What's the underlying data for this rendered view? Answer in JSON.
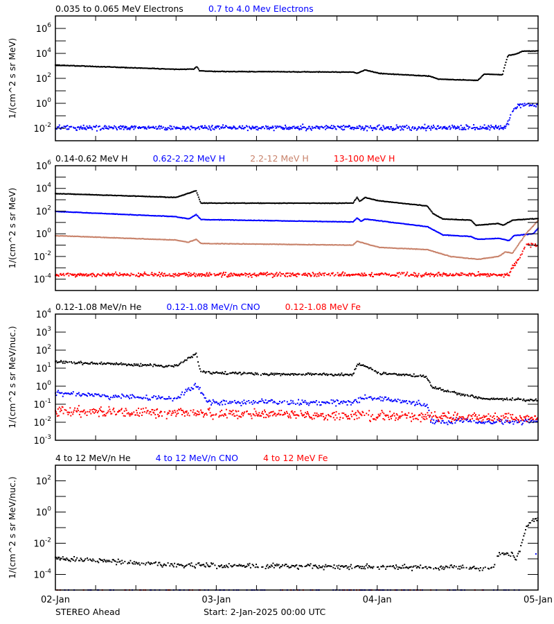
{
  "chart_data": [
    {
      "type": "scatter",
      "yscale": "log",
      "ylim": [
        0.001,
        10000000.0
      ],
      "yticks_labeled_exponents": [
        6,
        4,
        2,
        0,
        -2
      ],
      "ylabel": "1/(cm^2 s sr MeV)",
      "xlim": [
        "2025-01-02T00:00",
        "2025-01-05T00:00"
      ],
      "series": [
        {
          "name": "0.035 to 0.065 MeV Electrons",
          "color": "#000000",
          "points": [
            [
              "2025-01-02T00:00",
              1150
            ],
            [
              "2025-01-02T18:00",
              525
            ],
            [
              "2025-01-02T20:42",
              560
            ],
            [
              "2025-01-02T21:06",
              890
            ],
            [
              "2025-01-02T21:30",
              400
            ],
            [
              "2025-01-03T00:00",
              355
            ],
            [
              "2025-01-03T09:00",
              340
            ],
            [
              "2025-01-03T20:24",
              316
            ],
            [
              "2025-01-03T21:00",
              250
            ],
            [
              "2025-01-03T22:12",
              470
            ],
            [
              "2025-01-04T00:18",
              250
            ],
            [
              "2025-01-04T07:48",
              150
            ],
            [
              "2025-01-04T09:06",
              87
            ],
            [
              "2025-01-04T15:00",
              68
            ],
            [
              "2025-01-04T16:00",
              225
            ],
            [
              "2025-01-04T18:42",
              190
            ],
            [
              "2025-01-04T19:06",
              1260
            ],
            [
              "2025-01-04T19:30",
              6800
            ],
            [
              "2025-01-04T20:42",
              8700
            ],
            [
              "2025-01-04T21:42",
              14800
            ],
            [
              "2025-01-05T00:00",
              15800
            ]
          ]
        },
        {
          "name": "0.7 to 4.0 Mev Electrons",
          "color": "#0000ff",
          "points": [
            [
              "2025-01-02T00:00",
              0.011
            ],
            [
              "2025-01-04T19:00",
              0.011
            ],
            [
              "2025-01-04T19:42",
              0.036
            ],
            [
              "2025-01-04T20:12",
              0.25
            ],
            [
              "2025-01-04T21:12",
              0.8
            ],
            [
              "2025-01-05T00:00",
              0.68
            ]
          ]
        }
      ]
    },
    {
      "type": "scatter",
      "yscale": "log",
      "ylim": [
        1e-05,
        1000000.0
      ],
      "yticks_labeled_exponents": [
        6,
        4,
        2,
        0,
        -2,
        -4
      ],
      "ylabel": "1/(cm^2 s sr MeV)",
      "xlim": [
        "2025-01-02T00:00",
        "2025-01-05T00:00"
      ],
      "series": [
        {
          "name": "0.14-0.62 MeV H",
          "color": "#000000",
          "points": [
            [
              "2025-01-02T00:00",
              3500
            ],
            [
              "2025-01-02T18:00",
              1600
            ],
            [
              "2025-01-02T21:00",
              6300
            ],
            [
              "2025-01-02T21:42",
              500
            ],
            [
              "2025-01-03T20:24",
              500
            ],
            [
              "2025-01-03T21:00",
              1600
            ],
            [
              "2025-01-03T21:24",
              700
            ],
            [
              "2025-01-03T22:12",
              1600
            ],
            [
              "2025-01-04T00:18",
              800
            ],
            [
              "2025-01-04T07:30",
              280
            ],
            [
              "2025-01-04T08:18",
              63
            ],
            [
              "2025-01-04T09:48",
              20
            ],
            [
              "2025-01-04T14:00",
              16
            ],
            [
              "2025-01-04T14:42",
              5.6
            ],
            [
              "2025-01-04T18:06",
              8
            ],
            [
              "2025-01-04T18:48",
              5.6
            ],
            [
              "2025-01-04T20:12",
              16
            ],
            [
              "2025-01-05T00:00",
              22
            ]
          ]
        },
        {
          "name": "0.62-2.22 MeV H",
          "color": "#0000ff",
          "points": [
            [
              "2025-01-02T00:00",
              93
            ],
            [
              "2025-01-02T18:00",
              32
            ],
            [
              "2025-01-02T19:54",
              20
            ],
            [
              "2025-01-02T21:00",
              50
            ],
            [
              "2025-01-02T21:42",
              18
            ],
            [
              "2025-01-03T20:24",
              11
            ],
            [
              "2025-01-03T21:00",
              25
            ],
            [
              "2025-01-03T21:36",
              12.6
            ],
            [
              "2025-01-03T22:12",
              20
            ],
            [
              "2025-01-04T07:30",
              4.2
            ],
            [
              "2025-01-04T09:48",
              0.8
            ],
            [
              "2025-01-04T14:00",
              0.56
            ],
            [
              "2025-01-04T15:00",
              0.32
            ],
            [
              "2025-01-04T18:06",
              0.4
            ],
            [
              "2025-01-04T19:42",
              0.25
            ],
            [
              "2025-01-04T20:24",
              0.7
            ],
            [
              "2025-01-04T23:18",
              1.0
            ],
            [
              "2025-01-05T00:00",
              3.2
            ]
          ]
        },
        {
          "name": "2.2-12 MeV H",
          "color": "#c8826a",
          "points": [
            [
              "2025-01-02T00:00",
              0.68
            ],
            [
              "2025-01-02T18:00",
              0.28
            ],
            [
              "2025-01-02T19:48",
              0.18
            ],
            [
              "2025-01-02T21:00",
              0.32
            ],
            [
              "2025-01-02T21:42",
              0.14
            ],
            [
              "2025-01-03T20:24",
              0.1
            ],
            [
              "2025-01-03T21:00",
              0.22
            ],
            [
              "2025-01-04T00:18",
              0.063
            ],
            [
              "2025-01-04T07:30",
              0.04
            ],
            [
              "2025-01-04T10:54",
              0.01
            ],
            [
              "2025-01-04T15:00",
              0.0056
            ],
            [
              "2025-01-04T18:06",
              0.01
            ],
            [
              "2025-01-04T19:06",
              0.025
            ],
            [
              "2025-01-04T20:12",
              0.02
            ],
            [
              "2025-01-04T22:12",
              1.0
            ],
            [
              "2025-01-05T00:00",
              15
            ]
          ]
        },
        {
          "name": "13-100 MeV H",
          "color": "#ff0000",
          "points": [
            [
              "2025-01-02T00:00",
              0.00025
            ],
            [
              "2025-01-04T19:42",
              0.00025
            ],
            [
              "2025-01-04T20:12",
              0.00126
            ],
            [
              "2025-01-04T21:24",
              0.01
            ],
            [
              "2025-01-04T22:12",
              0.11
            ],
            [
              "2025-01-05T00:00",
              0.1
            ]
          ]
        }
      ]
    },
    {
      "type": "scatter",
      "yscale": "log",
      "ylim": [
        0.001,
        10000.0
      ],
      "yticks_labeled_exponents": [
        4,
        3,
        2,
        1,
        0,
        -1,
        -2,
        -3
      ],
      "ylabel": "1/(cm^2 s sr MeV/nuc.)",
      "xlim": [
        "2025-01-02T00:00",
        "2025-01-05T00:00"
      ],
      "series": [
        {
          "name": "0.12-1.08 MeV/n He",
          "color": "#000000",
          "points": [
            [
              "2025-01-02T00:00",
              22
            ],
            [
              "2025-01-02T18:00",
              12.6
            ],
            [
              "2025-01-02T21:00",
              63
            ],
            [
              "2025-01-02T21:42",
              5.9
            ],
            [
              "2025-01-03T09:00",
              4.5
            ],
            [
              "2025-01-03T20:24",
              4.5
            ],
            [
              "2025-01-03T21:00",
              17
            ],
            [
              "2025-01-03T22:12",
              12.6
            ],
            [
              "2025-01-04T00:18",
              5.4
            ],
            [
              "2025-01-04T07:18",
              3.5
            ],
            [
              "2025-01-04T08:18",
              0.8
            ],
            [
              "2025-01-04T11:54",
              0.4
            ],
            [
              "2025-01-04T16:00",
              0.2
            ],
            [
              "2025-01-05T00:00",
              0.17
            ]
          ]
        },
        {
          "name": "0.12-1.08 MeV/n CNO",
          "color": "#0000ff",
          "points": [
            [
              "2025-01-02T00:00",
              0.4
            ],
            [
              "2025-01-02T18:00",
              0.2
            ],
            [
              "2025-01-02T21:00",
              1.26
            ],
            [
              "2025-01-02T22:42",
              0.126
            ],
            [
              "2025-01-03T20:24",
              0.126
            ],
            [
              "2025-01-03T22:12",
              0.25
            ],
            [
              "2025-01-04T07:30",
              0.1
            ],
            [
              "2025-01-04T08:00",
              0.011
            ],
            [
              "2025-01-05T00:00",
              0.011
            ]
          ]
        },
        {
          "name": "0.12-1.08 MeV Fe",
          "color": "#ff0000",
          "points": [
            [
              "2025-01-02T00:00",
              0.04
            ],
            [
              "2025-01-03T00:00",
              0.03
            ],
            [
              "2025-01-04T08:00",
              0.02
            ],
            [
              "2025-01-05T00:00",
              0.015
            ]
          ]
        }
      ]
    },
    {
      "type": "scatter",
      "yscale": "log",
      "ylim": [
        1e-05,
        1000.0
      ],
      "yticks_labeled_exponents": [
        2,
        0,
        -2,
        -4
      ],
      "ylabel": "1/(cm^2 s sr MeV/nuc.)",
      "xlim": [
        "2025-01-02T00:00",
        "2025-01-05T00:00"
      ],
      "series": [
        {
          "name": "4 to 12 MeV/n He",
          "color": "#000000",
          "points": [
            [
              "2025-01-02T00:00",
              0.0011
            ],
            [
              "2025-01-02T18:00",
              0.0004
            ],
            [
              "2025-01-04T17:24",
              0.00025
            ],
            [
              "2025-01-04T18:06",
              0.002
            ],
            [
              "2025-01-04T20:12",
              0.002
            ],
            [
              "2025-01-04T20:42",
              0.0008
            ],
            [
              "2025-01-04T21:24",
              0.005
            ],
            [
              "2025-01-04T22:12",
              0.11
            ],
            [
              "2025-01-04T23:18",
              0.28
            ],
            [
              "2025-01-05T00:00",
              0.34
            ]
          ]
        },
        {
          "name": "4 to 12 MeV/n CNO",
          "color": "#0000ff",
          "points": [
            [
              "2025-01-02T00:00",
              1e-05
            ],
            [
              "2025-01-04T21:36",
              1e-05
            ],
            [
              "2025-01-04T21:54",
              0.00025
            ],
            [
              "2025-01-04T22:36",
              0.0011
            ],
            [
              "2025-01-05T00:00",
              0.0025
            ]
          ]
        },
        {
          "name": "4 to 12 MeV Fe",
          "color": "#ff0000",
          "points": [
            [
              "2025-01-02T00:00",
              1e-05
            ],
            [
              "2025-01-04T22:00",
              1e-05
            ],
            [
              "2025-01-04T22:12",
              0.0001
            ],
            [
              "2025-01-04T23:00",
              0.0005
            ],
            [
              "2025-01-05T00:00",
              0.001
            ]
          ]
        }
      ]
    }
  ],
  "x_tick_labels": [
    "02-Jan",
    "03-Jan",
    "04-Jan",
    "05-Jan"
  ],
  "footer": {
    "spacecraft": "STEREO Ahead",
    "start": "Start:  2-Jan-2025 00:00 UTC"
  }
}
